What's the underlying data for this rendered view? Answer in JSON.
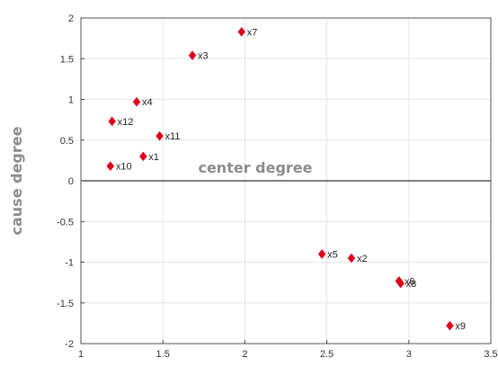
{
  "chart_data": {
    "type": "scatter",
    "xlabel": "center degree",
    "ylabel": "cause degree",
    "xlim": [
      1,
      3.5
    ],
    "ylim": [
      -2,
      2
    ],
    "xticks": [
      "1",
      "1.5",
      "2",
      "2.5",
      "3",
      "3.5"
    ],
    "yticks": [
      "2",
      "1.5",
      "1",
      "0.5",
      "0",
      "-0.5",
      "-1",
      "-1.5",
      "-2"
    ],
    "grid": true,
    "marker_color": "#e0001b",
    "points": [
      {
        "label": "x1",
        "x": 1.38,
        "y": 0.3
      },
      {
        "label": "x2",
        "x": 2.65,
        "y": -0.95
      },
      {
        "label": "x3",
        "x": 1.68,
        "y": 1.54
      },
      {
        "label": "x4",
        "x": 1.34,
        "y": 0.97
      },
      {
        "label": "x5",
        "x": 2.47,
        "y": -0.9
      },
      {
        "label": "x6",
        "x": 2.94,
        "y": -1.23
      },
      {
        "label": "x7",
        "x": 1.98,
        "y": 1.83
      },
      {
        "label": "x8",
        "x": 2.95,
        "y": -1.26
      },
      {
        "label": "x9",
        "x": 3.25,
        "y": -1.78
      },
      {
        "label": "x10",
        "x": 1.18,
        "y": 0.18
      },
      {
        "label": "x11",
        "x": 1.48,
        "y": 0.55
      },
      {
        "label": "x12",
        "x": 1.19,
        "y": 0.73
      }
    ]
  }
}
